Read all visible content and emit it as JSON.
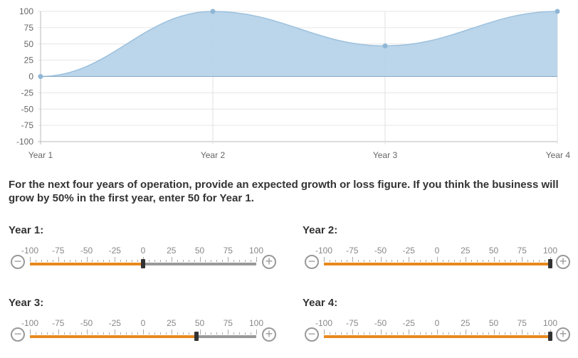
{
  "chart_data": {
    "type": "area",
    "categories": [
      "Year 1",
      "Year 2",
      "Year 3",
      "Year 4"
    ],
    "values": [
      0,
      100,
      47,
      100
    ],
    "ylim": [
      -100,
      100
    ],
    "yticks": [
      100,
      75,
      50,
      25,
      0,
      -25,
      -50,
      -75,
      -100
    ],
    "grid": true,
    "fill_color": "#b7d3e9",
    "line_color": "#9cc1de"
  },
  "prompt": "For the next four years of operation, provide an expected growth or loss figure. If you think the business will grow by 50% in the first year, enter 50 for Year 1.",
  "slider_ticks": [
    "-100",
    "-75",
    "-50",
    "-25",
    "0",
    "25",
    "50",
    "75",
    "100"
  ],
  "sliders": [
    {
      "label": "Year 1:",
      "value": 0
    },
    {
      "label": "Year 2:",
      "value": 100
    },
    {
      "label": "Year 3:",
      "value": 47
    },
    {
      "label": "Year 4:",
      "value": 100
    }
  ],
  "colors": {
    "accent": "#e8891e",
    "track": "#999999"
  }
}
